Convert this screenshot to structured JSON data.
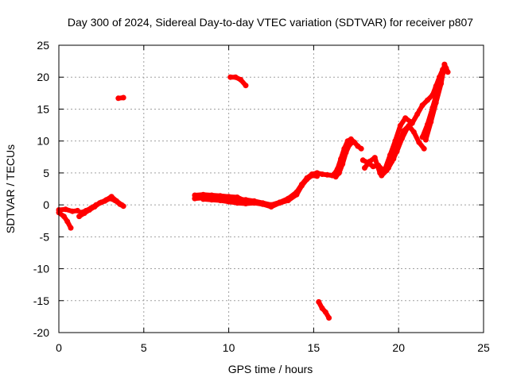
{
  "chart_data": {
    "type": "scatter",
    "title": "Day 300 of 2024, Sidereal Day-to-day VTEC variation (SDTVAR) for receiver p807",
    "xlabel": "GPS time / hours",
    "ylabel": "SDTVAR / TECUs",
    "xlim": [
      0,
      25
    ],
    "ylim": [
      -20,
      25
    ],
    "x_ticks": [
      "0",
      "5",
      "10",
      "15",
      "20",
      "25"
    ],
    "y_ticks": [
      "25",
      "20",
      "15",
      "10",
      "5",
      "0",
      "-5",
      "-10",
      "-15",
      "-20"
    ],
    "grid": true,
    "series_color": "#ff0000",
    "series": [
      {
        "x": [
          0.0,
          0.3,
          0.5,
          0.7
        ],
        "y": [
          -1.2,
          -1.8,
          -2.6,
          -3.6
        ]
      },
      {
        "x": [
          0.0,
          0.4,
          0.8,
          1.1
        ],
        "y": [
          -0.8,
          -0.7,
          -1.0,
          -0.9
        ]
      },
      {
        "x": [
          1.2,
          1.5,
          1.8,
          2.1,
          2.4,
          2.7,
          3.0,
          3.3,
          3.6,
          3.8
        ],
        "y": [
          -1.8,
          -1.3,
          -0.8,
          -0.3,
          0.3,
          0.6,
          1.0,
          0.7,
          0.1,
          -0.2
        ]
      },
      {
        "x": [
          1.3,
          1.6,
          1.9,
          2.2,
          2.5,
          2.8,
          3.1,
          3.4,
          3.7
        ],
        "y": [
          -1.2,
          -0.9,
          -0.5,
          0.0,
          0.4,
          0.8,
          1.3,
          0.6,
          0.0
        ]
      },
      {
        "x": [
          3.5,
          3.8
        ],
        "y": [
          16.7,
          16.8
        ]
      },
      {
        "x": [
          8.0,
          8.5,
          9.0,
          9.5,
          10.0,
          10.5,
          11.0,
          11.5,
          12.0,
          12.5,
          13.0,
          13.5,
          14.0,
          14.3,
          14.6,
          14.9,
          15.2,
          15.5,
          15.8,
          16.1
        ],
        "y": [
          1.0,
          1.1,
          1.1,
          1.0,
          1.0,
          0.9,
          0.8,
          0.6,
          0.3,
          0.0,
          0.4,
          1.0,
          2.0,
          3.2,
          4.2,
          4.8,
          5.0,
          4.8,
          4.7,
          4.6
        ]
      },
      {
        "x": [
          8.0,
          8.5,
          9.0,
          9.5,
          10.0,
          10.5,
          11.0
        ],
        "y": [
          1.5,
          1.6,
          1.5,
          1.4,
          1.3,
          1.2,
          0.6
        ]
      },
      {
        "x": [
          8.5,
          9.0,
          9.5,
          10.0,
          10.5,
          11.0,
          11.5,
          12.0,
          12.5,
          13.0,
          13.5,
          14.0,
          14.3,
          14.6,
          14.9,
          15.2
        ],
        "y": [
          0.9,
          0.8,
          0.7,
          0.5,
          0.3,
          0.2,
          0.3,
          0.1,
          -0.3,
          0.3,
          0.7,
          1.6,
          3.0,
          4.0,
          4.6,
          4.5
        ]
      },
      {
        "x": [
          10.1,
          10.4,
          10.7,
          11.0
        ],
        "y": [
          20.0,
          20.0,
          19.6,
          18.7
        ]
      },
      {
        "x": [
          15.3,
          15.5,
          15.7,
          15.9
        ],
        "y": [
          -15.2,
          -16.2,
          -16.8,
          -17.7
        ]
      },
      {
        "x": [
          16.2,
          16.4,
          16.6,
          16.8,
          17.0,
          17.2,
          17.4,
          17.6,
          17.8
        ],
        "y": [
          4.8,
          5.6,
          7.2,
          8.8,
          10.0,
          10.3,
          9.8,
          9.2,
          8.8
        ]
      },
      {
        "x": [
          16.3,
          16.5,
          16.7,
          16.9,
          17.1,
          17.3
        ],
        "y": [
          4.4,
          5.0,
          6.4,
          8.2,
          9.4,
          9.8
        ]
      },
      {
        "x": [
          17.9,
          18.2,
          18.5,
          18.8,
          19.1,
          19.4,
          19.7,
          20.0,
          20.3,
          20.6,
          20.9,
          21.2,
          21.5
        ],
        "y": [
          7.0,
          6.6,
          6.0,
          6.2,
          5.4,
          5.8,
          7.2,
          9.4,
          11.6,
          12.4,
          11.4,
          9.8,
          8.8
        ]
      },
      {
        "x": [
          18.0,
          18.3,
          18.6,
          18.9,
          19.2,
          19.5,
          19.8,
          20.1,
          20.4,
          20.7
        ],
        "y": [
          5.8,
          6.8,
          7.4,
          5.0,
          5.6,
          7.8,
          10.0,
          12.4,
          13.6,
          13.0
        ]
      },
      {
        "x": [
          19.0,
          19.3,
          19.6,
          19.9,
          20.2,
          20.5,
          20.8,
          21.1,
          21.4,
          21.7,
          22.0,
          22.2,
          22.4,
          22.6
        ],
        "y": [
          4.6,
          5.4,
          6.8,
          8.4,
          10.4,
          12.0,
          12.8,
          14.2,
          15.6,
          16.4,
          17.2,
          18.6,
          20.0,
          21.2
        ]
      },
      {
        "x": [
          21.4,
          21.7,
          22.0,
          22.3,
          22.6,
          22.8
        ],
        "y": [
          10.6,
          12.6,
          15.2,
          18.0,
          20.6,
          21.4
        ]
      },
      {
        "x": [
          21.6,
          21.9,
          22.2,
          22.5,
          22.7,
          22.9
        ],
        "y": [
          10.2,
          13.0,
          16.0,
          19.0,
          22.0,
          20.8
        ]
      }
    ]
  }
}
